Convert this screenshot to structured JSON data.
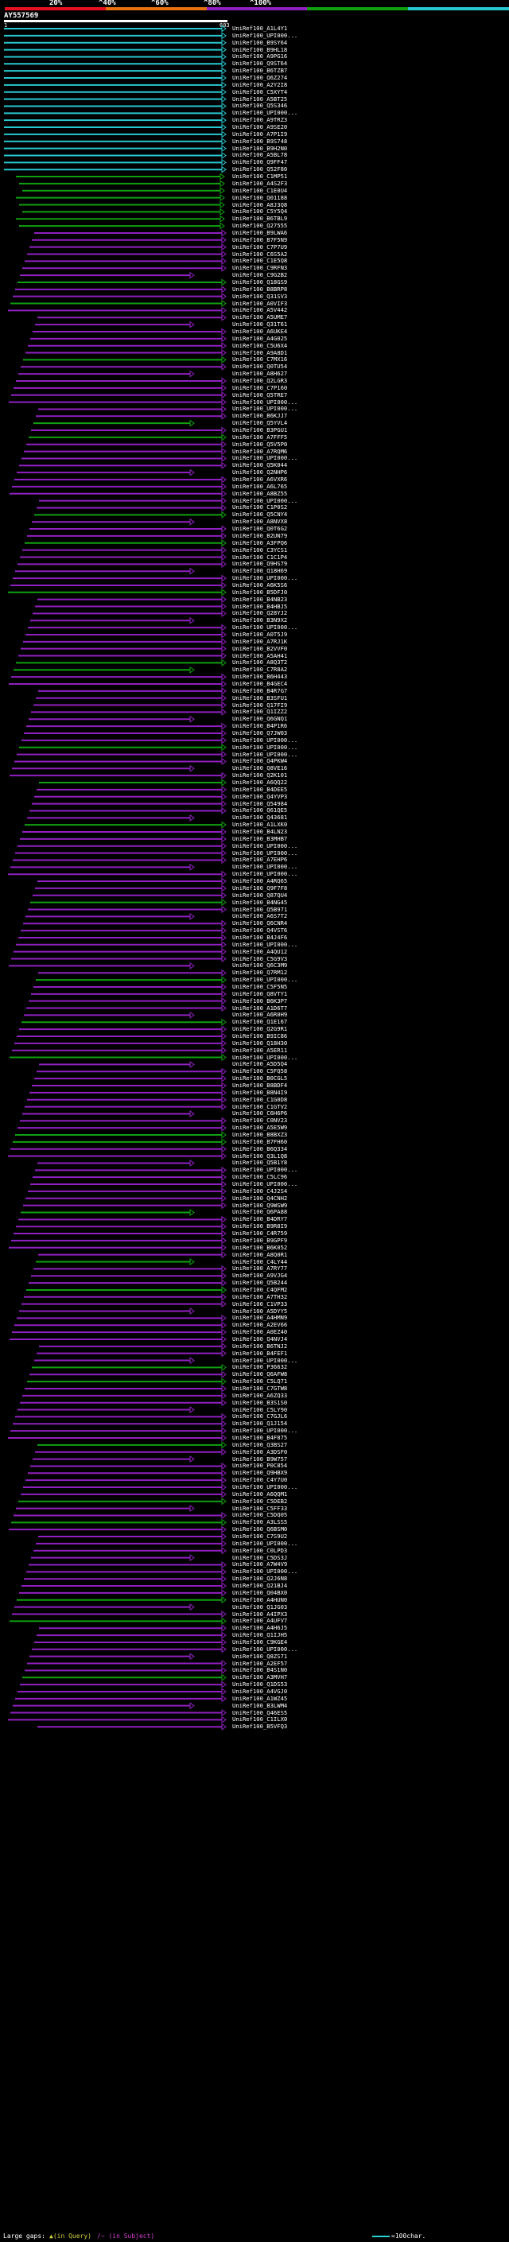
{
  "legend": {
    "labels": [
      "20%",
      "^40%",
      "^60%",
      "^80%",
      "^100%"
    ],
    "colors": [
      "#e8101e",
      "#e87010",
      "#9020c0",
      "#10a010",
      "#28c8d0"
    ]
  },
  "query": {
    "name": "AY557569",
    "start": "1",
    "end": "603"
  },
  "footer": {
    "gaps_label": "Large gaps:",
    "query_gap": "▲(in Query)",
    "subject_gap": "/~ (in Subject)",
    "scale_label": "=100char."
  },
  "hits": [
    "UniRef100_A1L4Y1",
    "UniRef100_UPI000...",
    "UniRef100_B9SY64",
    "UniRef100_B9HL18",
    "UniRef100_A9PG16",
    "UniRef100_Q9ST64",
    "UniRef100_B6TZB7",
    "UniRef100_Q6Z274",
    "UniRef100_A2Y2I8",
    "UniRef100_C5XYT4",
    "UniRef100_A5BT25",
    "UniRef100_Q5S346",
    "UniRef100_UPI000...",
    "UniRef100_A9TRZ3",
    "UniRef100_A9SE20",
    "UniRef100_A7P1I9",
    "UniRef100_B9S748",
    "UniRef100_B9H2N0",
    "UniRef100_A5BL78",
    "UniRef100_Q9FF47",
    "UniRef100_Q52F80",
    "UniRef100_C1MP51",
    "UniRef100_A4S2F3",
    "UniRef100_C1E0U4",
    "UniRef100_Q01188",
    "UniRef100_A8J3Q8",
    "UniRef100_C5Y5Q4",
    "UniRef100_B6TBL9",
    "UniRef100_Q27555",
    "UniRef100_B9LWA6",
    "UniRef100_B7F5N9",
    "UniRef100_C7P7U9",
    "UniRef100_C6S5A2",
    "UniRef100_C1E5Q8",
    "UniRef100_C9RFN3",
    "UniRef100_C9G2B2",
    "UniRef100_Q18GS9",
    "UniRef100_B8BRP8",
    "UniRef100_Q31SV3",
    "UniRef100_A0VIF3",
    "UniRef100_A5V442",
    "UniRef100_A5UME7",
    "UniRef100_Q31T61",
    "UniRef100_A6UKE4",
    "UniRef100_A4G025",
    "UniRef100_C5U6X4",
    "UniRef100_A9A8D1",
    "UniRef100_C7MX16",
    "UniRef100_Q0TU54",
    "UniRef100_A8H627",
    "UniRef100_Q2LGR3",
    "UniRef100_C7P160",
    "UniRef100_Q5TRE7",
    "UniRef100_UPI000...",
    "UniRef100_UPI000...",
    "UniRef100_B6KJJ7",
    "UniRef100_Q5YVL4",
    "UniRef100_B3PGU1",
    "UniRef100_A7FFF5",
    "UniRef100_Q5V5P0",
    "UniRef100_A7RQM6",
    "UniRef100_UPI000...",
    "UniRef100_Q5K044",
    "UniRef100_Q2NHP6",
    "UniRef100_A6VXR6",
    "UniRef100_A6L765",
    "UniRef100_A8BZ55",
    "UniRef100_UPI000...",
    "UniRef100_C1P0S2",
    "UniRef100_Q5CNY4",
    "UniRef100_A8NVX8",
    "UniRef100_Q0T6G2",
    "UniRef100_B2UN79",
    "UniRef100_A3FPQ6",
    "UniRef100_C3YCS1",
    "UniRef100_C1C1P4",
    "UniRef100_Q9HS79",
    "UniRef100_Q18H69",
    "UniRef100_UPI000...",
    "UniRef100_A6K5S6",
    "UniRef100_B5DFJ0",
    "UniRef100_B4NB23",
    "UniRef100_B4HBJ5",
    "UniRef100_Q28YJ2",
    "UniRef100_B3N9X2",
    "UniRef100_UPI000...",
    "UniRef100_A0T5J9",
    "UniRef100_A7RJ1K",
    "UniRef100_B2VVF0",
    "UniRef100_A5AH41",
    "UniRef100_A8Q3T2",
    "UniRef100_C7R8A2",
    "UniRef100_B6H443",
    "UniRef100_B4GEC4",
    "UniRef100_B4R7G7",
    "UniRef100_B3SFU1",
    "UniRef100_Q17FI9",
    "UniRef100_Q1IZZ2",
    "UniRef100_Q6GNQ1",
    "UniRef100_B4P1R6",
    "UniRef100_Q7JW03",
    "UniRef100_UPI000...",
    "UniRef100_UPI000...",
    "UniRef100_UPI000...",
    "UniRef100_Q4PKW4",
    "UniRef100_Q8VE16",
    "UniRef100_Q2K101",
    "UniRef100_A6QQ22",
    "UniRef100_B4DEE5",
    "UniRef100_Q4YVP3",
    "UniRef100_Q54984",
    "UniRef100_Q61QE5",
    "UniRef100_Q43681",
    "UniRef100_A1LXK0",
    "UniRef100_B4LN23",
    "UniRef100_B3MHB7",
    "UniRef100_UPI000...",
    "UniRef100_UPI000...",
    "UniRef100_A7EHP6",
    "UniRef100_UPI000...",
    "UniRef100_UPI000...",
    "UniRef100_A4RQ65",
    "UniRef100_Q9F7F8",
    "UniRef100_Q87QU4",
    "UniRef100_B4NG45",
    "UniRef100_Q5B971",
    "UniRef100_A6S7T2",
    "UniRef100_Q6CNR4",
    "UniRef100_Q4VST6",
    "UniRef100_B4J4F6",
    "UniRef100_UPI000...",
    "UniRef100_A4QU12",
    "UniRef100_C5G9V3",
    "UniRef100_Q6C3M9",
    "UniRef100_Q7RM12",
    "UniRef100_UPI000...",
    "UniRef100_C5F5N5",
    "UniRef100_Q8VTY1",
    "UniRef100_B6K3P7",
    "UniRef100_A1D6T7",
    "UniRef100_A6R0H9",
    "UniRef100_Q1E167",
    "UniRef100_Q2G9R1",
    "UniRef100_B9IC86",
    "UniRef100_Q18H30",
    "UniRef100_A5ER11",
    "UniRef100_UPI000...",
    "UniRef100_A5D5Q4",
    "UniRef100_C5FQ58",
    "UniRef100_B0CGL5",
    "UniRef100_B8BDF4",
    "UniRef100_B8N4I9",
    "UniRef100_C1G0D8",
    "UniRef100_C1GTV2",
    "UniRef100_C6H6P6",
    "UniRef100_C0NV23",
    "UniRef100_A5E5W9",
    "UniRef100_B8BXZ3",
    "UniRef100_B7FH60",
    "UniRef100_B6Q334",
    "UniRef100_Q3L1Q8",
    "UniRef100_Q5B1Y8",
    "UniRef100_UPI000...",
    "UniRef100_C5LC96",
    "UniRef100_UPI000...",
    "UniRef100_C4J2S4",
    "UniRef100_Q4CNH2",
    "UniRef100_Q9WSW9",
    "UniRef100_Q6PA88",
    "UniRef100_B4DRY7",
    "UniRef100_B9R8I9",
    "UniRef100_C4R759",
    "UniRef100_B9GPF9",
    "UniRef100_B6K052",
    "UniRef100_A8Q0R1",
    "UniRef100_C4LY44",
    "UniRef100_A7RY77",
    "UniRef100_A9VJG4",
    "UniRef100_Q5B244",
    "UniRef100_C4QFM2",
    "UniRef100_A7TH32",
    "UniRef100_C1VP33",
    "UniRef100_A5DYY5",
    "UniRef100_A4HMN9",
    "UniRef100_A2EV66",
    "UniRef100_A0EZ40",
    "UniRef100_Q4NVJ4",
    "UniRef100_B6TNJ2",
    "UniRef100_B4FEF1",
    "UniRef100_UPI000...",
    "UniRef100_P36632",
    "UniRef100_Q6AFW8",
    "UniRef100_C5LQ71",
    "UniRef100_C7GTW8",
    "UniRef100_A6ZQ33",
    "UniRef100_B3S1S0",
    "UniRef100_C5LY90",
    "UniRef100_C7GJL6",
    "UniRef100_Q1J154",
    "UniRef100_UPI000...",
    "UniRef100_B4F875",
    "UniRef100_Q3BS27",
    "UniRef100_A3DSF0",
    "UniRef100_B9W757",
    "UniRef100_P0C854",
    "UniRef100_Q9HBX9",
    "UniRef100_C4Y7U0",
    "UniRef100_UPI000...",
    "UniRef100_A6QQM1",
    "UniRef100_C5DEB2",
    "UniRef100_C5FF33",
    "UniRef100_C5DQ05",
    "UniRef100_A3LSS5",
    "UniRef100_Q6BSM0",
    "UniRef100_C7S9U2",
    "UniRef100_UPI000...",
    "UniRef100_C0LPD3",
    "UniRef100_C5DS3J",
    "UniRef100_A7W4V9",
    "UniRef100_UPI000...",
    "UniRef100_Q2J6N8",
    "UniRef100_Q21BJ4",
    "UniRef100_Q04BX0",
    "UniRef100_A4HUN0",
    "UniRef100_Q1JG03",
    "UniRef100_A4IPX3",
    "UniRef100_A4UFV7",
    "UniRef100_A4H6J5",
    "UniRef100_Q1IJH5",
    "UniRef100_C9KGE4",
    "UniRef100_UPI000...",
    "UniRef100_Q8ZS71",
    "UniRef100_A2EF57",
    "UniRef100_B4S1N0",
    "UniRef100_A3MVH7",
    "UniRef100_Q1DS53",
    "UniRef100_A4VGJ0",
    "UniRef100_A1WZ45",
    "UniRef100_B3LWM4",
    "UniRef100_Q46ES5",
    "UniRef100_C1ILX0",
    "UniRef100_B5VFQ3"
  ]
}
